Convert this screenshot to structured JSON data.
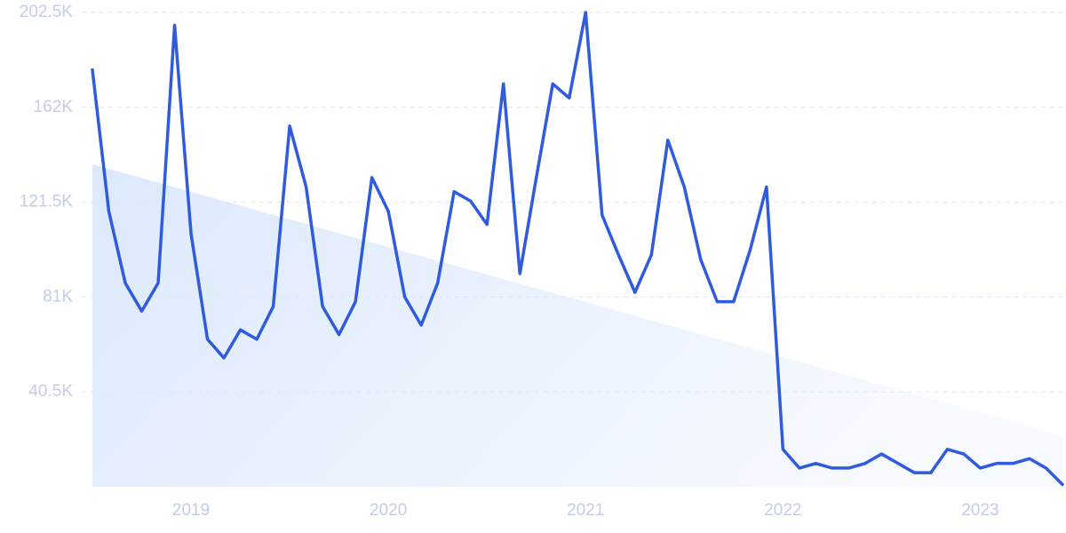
{
  "chart_data": {
    "type": "line",
    "categories": [
      null,
      null,
      null,
      null,
      null,
      null,
      "2019",
      null,
      null,
      null,
      null,
      null,
      null,
      null,
      null,
      null,
      null,
      null,
      "2020",
      null,
      null,
      null,
      null,
      null,
      null,
      null,
      null,
      null,
      null,
      null,
      "2021",
      null,
      null,
      null,
      null,
      null,
      null,
      null,
      null,
      null,
      null,
      null,
      "2022",
      null,
      null,
      null,
      null,
      null,
      null,
      null,
      null,
      null,
      null,
      null,
      "2023",
      null,
      null,
      null,
      null,
      null
    ],
    "series": [
      {
        "color": "#2f5bdc",
        "values": [
          178,
          117.6,
          87,
          75,
          87,
          197,
          108,
          63,
          55,
          67,
          63,
          77,
          154,
          128,
          77,
          65,
          79,
          132,
          117.6,
          81,
          69,
          87,
          126,
          122,
          112,
          172,
          91,
          132,
          172,
          166,
          202.5,
          116,
          99,
          83,
          99,
          148,
          128,
          97,
          79,
          79,
          101,
          128,
          16,
          8,
          10,
          8,
          8,
          10,
          14,
          10,
          6,
          6,
          16,
          14,
          8,
          10,
          10,
          12,
          8,
          1
        ]
      }
    ],
    "ylim": [
      0,
      202.5
    ],
    "yticks": [
      {
        "value": 40.5,
        "label": "40.5K"
      },
      {
        "value": 81,
        "label": "81K"
      },
      {
        "value": 121.5,
        "label": "121.5K"
      },
      {
        "value": 162,
        "label": "162K"
      },
      {
        "value": 202.5,
        "label": "202.5K"
      }
    ],
    "grid": true
  }
}
